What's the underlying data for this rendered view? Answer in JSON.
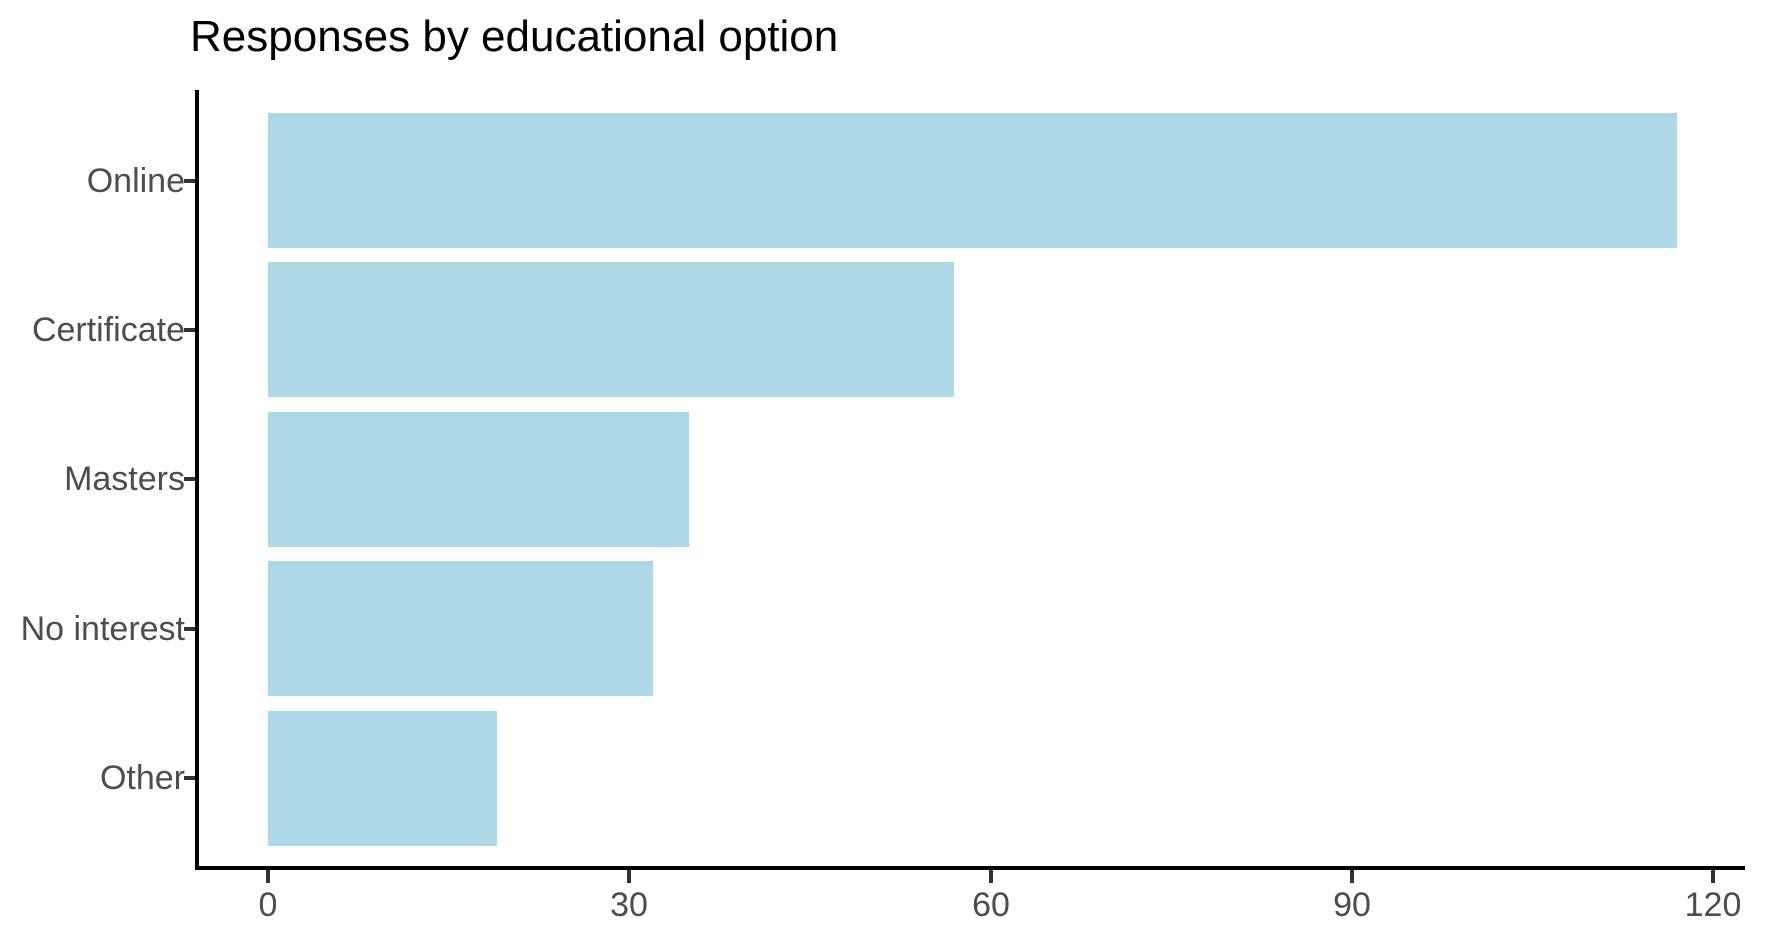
{
  "chart_data": {
    "type": "bar",
    "orientation": "horizontal",
    "title": "Responses by educational option",
    "categories": [
      "Online",
      "Certificate",
      "Masters",
      "No interest",
      "Other"
    ],
    "values": [
      117,
      57,
      35,
      32,
      19
    ],
    "x_ticks": [
      0,
      30,
      60,
      90,
      120
    ],
    "xlim": [
      0,
      120
    ],
    "xlabel": "",
    "ylabel": "",
    "grid": false,
    "legend_position": "none",
    "bar_color": "#ADD8E6",
    "axis_text_color": "#4D4D4D",
    "axis_line_color": "#000000",
    "background_color": "#FFFFFF"
  }
}
